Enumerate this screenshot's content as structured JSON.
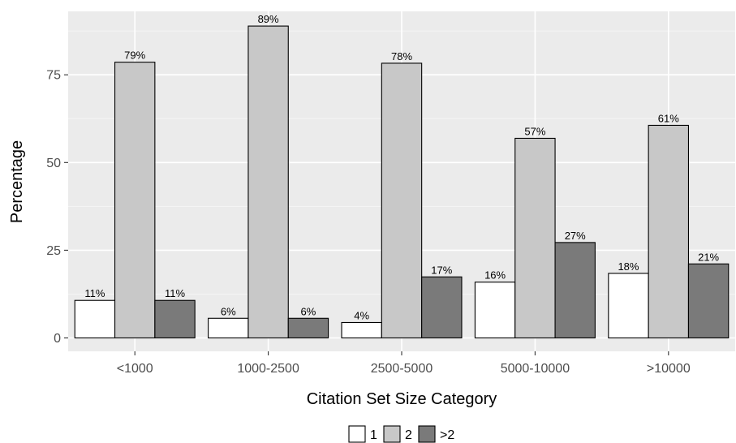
{
  "chart_data": {
    "type": "bar",
    "title": "",
    "xlabel": "Citation Set Size Category",
    "ylabel": "Percentage",
    "categories": [
      "<1000",
      "1000-2500",
      "2500-5000",
      "5000-10000",
      ">10000"
    ],
    "series": [
      {
        "name": "1",
        "color": "#ffffff",
        "values": [
          10.7,
          5.6,
          4.4,
          15.9,
          18.4
        ],
        "labels": [
          "11%",
          "6%",
          "4%",
          "16%",
          "18%"
        ]
      },
      {
        "name": "2",
        "color": "#c8c8c8",
        "values": [
          78.6,
          88.9,
          78.3,
          56.9,
          60.6
        ],
        "labels": [
          "79%",
          "89%",
          "78%",
          "57%",
          "61%"
        ]
      },
      {
        "name": ">2",
        "color": "#7a7a7a",
        "values": [
          10.7,
          5.6,
          17.4,
          27.2,
          21.1
        ],
        "labels": [
          "11%",
          "6%",
          "17%",
          "27%",
          "21%"
        ]
      }
    ],
    "ylim": [
      0,
      92.5
    ],
    "yticks": [
      0,
      25,
      50,
      75
    ],
    "grid": true,
    "legend_position": "bottom",
    "panel_background": "#ebebeb"
  }
}
